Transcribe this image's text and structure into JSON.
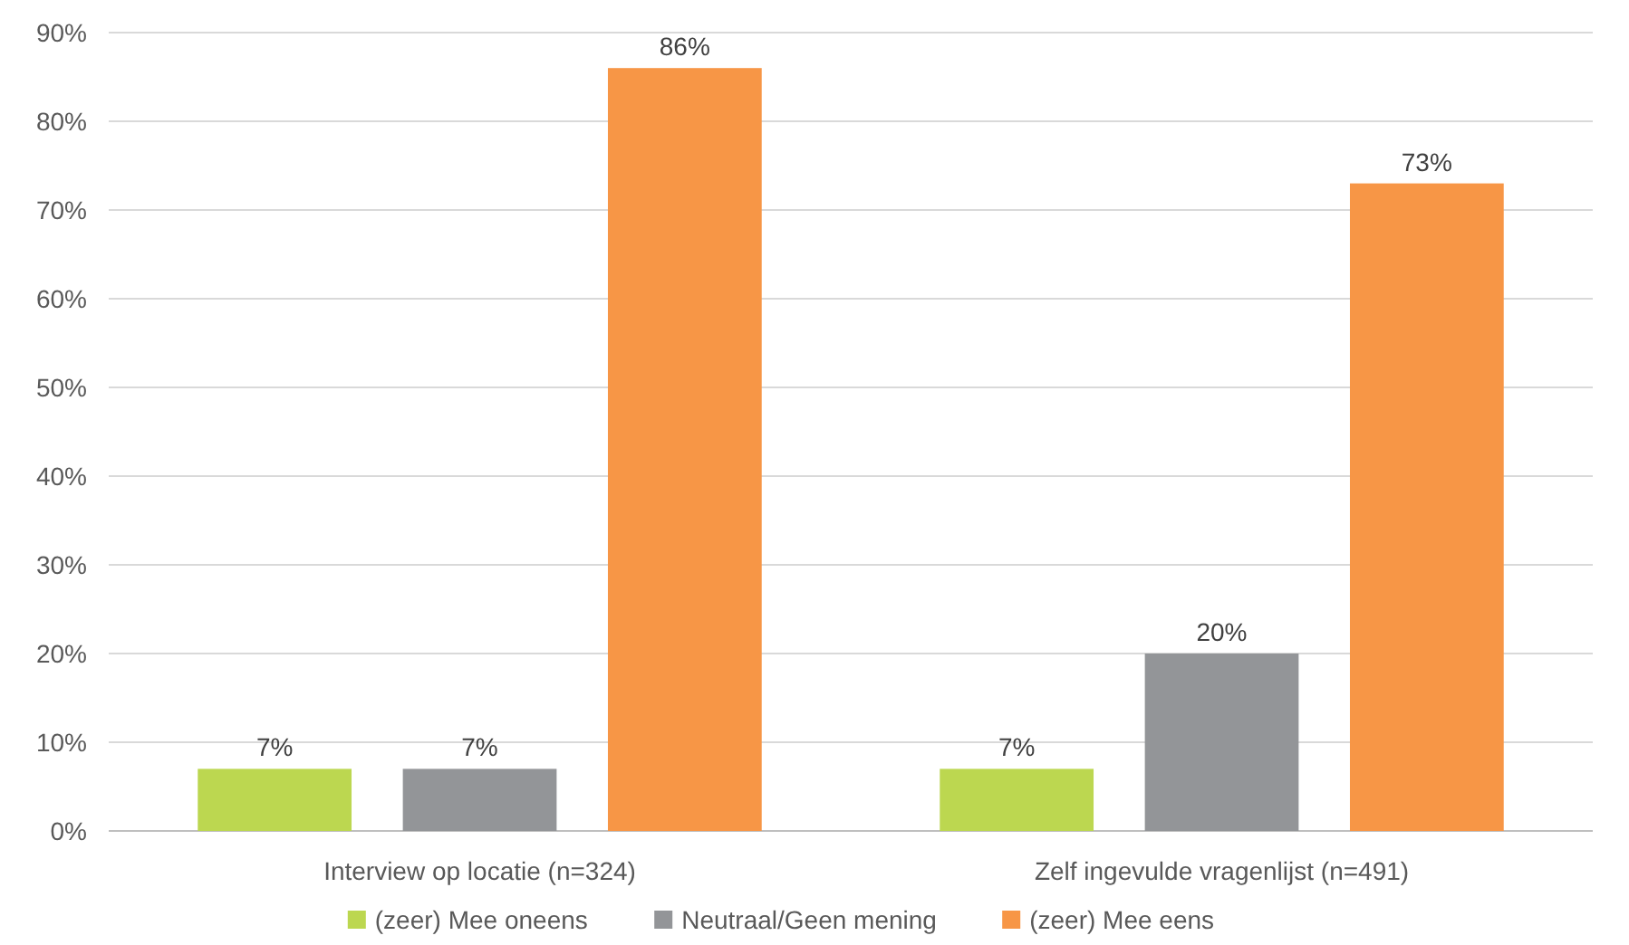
{
  "chart_data": {
    "type": "bar",
    "categories": [
      "Interview op locatie (n=324)",
      "Zelf ingevulde vragenlijst (n=491)"
    ],
    "series": [
      {
        "name": "(zeer) Mee oneens",
        "color": "#bcd750",
        "values": [
          7,
          7
        ],
        "value_labels": [
          "7%",
          "7%"
        ]
      },
      {
        "name": "Neutraal/Geen mening",
        "color": "#939598",
        "values": [
          7,
          20
        ],
        "value_labels": [
          "7%",
          "20%"
        ]
      },
      {
        "name": "(zeer) Mee eens",
        "color": "#f79646",
        "values": [
          86,
          73
        ],
        "value_labels": [
          "86%",
          "73%"
        ]
      }
    ],
    "ylim": [
      0,
      90
    ],
    "yticks": [
      {
        "value": 0,
        "label": "0%"
      },
      {
        "value": 10,
        "label": "10%"
      },
      {
        "value": 20,
        "label": "20%"
      },
      {
        "value": 30,
        "label": "30%"
      },
      {
        "value": 40,
        "label": "40%"
      },
      {
        "value": 50,
        "label": "50%"
      },
      {
        "value": 60,
        "label": "60%"
      },
      {
        "value": 70,
        "label": "70%"
      },
      {
        "value": 80,
        "label": "80%"
      },
      {
        "value": 90,
        "label": "90%"
      }
    ],
    "grid": "y",
    "legend": "bottom"
  }
}
